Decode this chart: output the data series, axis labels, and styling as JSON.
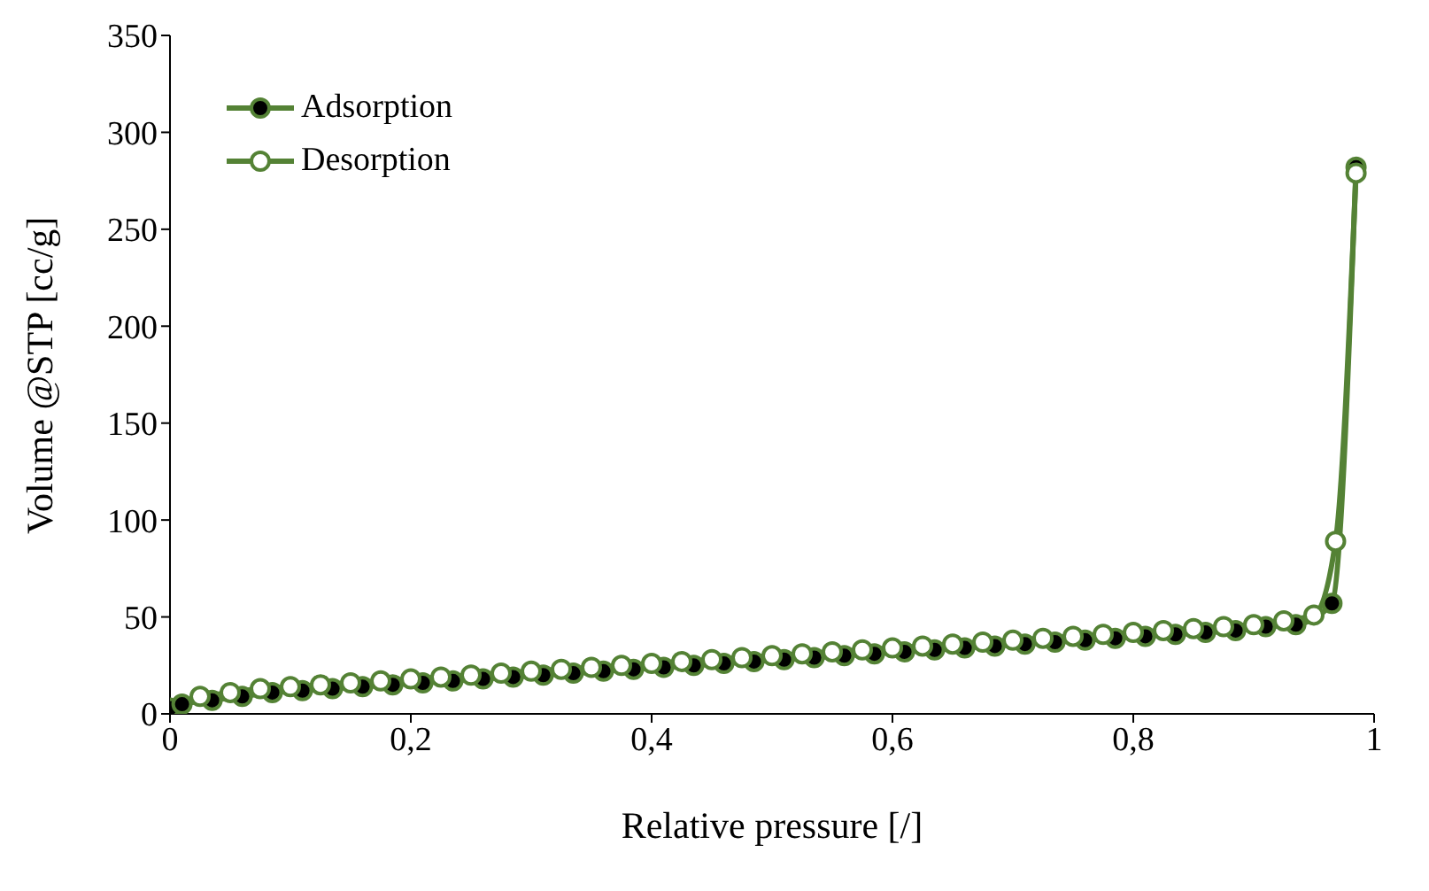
{
  "chart_data": {
    "type": "line",
    "xlabel": "Relative pressure [/]",
    "ylabel": "Volume @STP [cc/g]",
    "xlim": [
      0,
      1
    ],
    "ylim": [
      0,
      350
    ],
    "xticks": [
      0,
      {
        "value": 0.2,
        "label": "0,2"
      },
      {
        "value": 0.4,
        "label": "0,4"
      },
      {
        "value": 0.6,
        "label": "0,6"
      },
      {
        "value": 0.8,
        "label": "0,8"
      },
      1
    ],
    "yticks": [
      0,
      50,
      100,
      150,
      200,
      250,
      300,
      350
    ],
    "grid": false,
    "legend": "top left",
    "marker": "circle",
    "line_style": "solid",
    "series": [
      {
        "name": "Adsorption",
        "color": "#548235",
        "x": [
          0,
          0.01,
          0.035,
          0.06,
          0.085,
          0.11,
          0.135,
          0.16,
          0.185,
          0.21,
          0.235,
          0.26,
          0.285,
          0.31,
          0.335,
          0.36,
          0.385,
          0.41,
          0.435,
          0.46,
          0.485,
          0.51,
          0.535,
          0.56,
          0.585,
          0.61,
          0.635,
          0.66,
          0.685,
          0.71,
          0.735,
          0.76,
          0.785,
          0.81,
          0.835,
          0.86,
          0.885,
          0.91,
          0.935,
          0.965,
          0.985
        ],
        "values": [
          3,
          5,
          7,
          9,
          11,
          12,
          13,
          14,
          15,
          16,
          17,
          18,
          19,
          20,
          21,
          22,
          23,
          24,
          25,
          26,
          27,
          28,
          29,
          30,
          31,
          32,
          33,
          34,
          35,
          36,
          37,
          38,
          39,
          40,
          41,
          42,
          43,
          45,
          46,
          57,
          282
        ]
      },
      {
        "name": "Desorption",
        "color": "#548235",
        "x": [
          0.025,
          0.05,
          0.075,
          0.1,
          0.125,
          0.15,
          0.175,
          0.2,
          0.225,
          0.25,
          0.275,
          0.3,
          0.325,
          0.35,
          0.375,
          0.4,
          0.425,
          0.45,
          0.475,
          0.5,
          0.525,
          0.55,
          0.575,
          0.6,
          0.625,
          0.65,
          0.675,
          0.7,
          0.725,
          0.75,
          0.775,
          0.8,
          0.825,
          0.85,
          0.875,
          0.9,
          0.925,
          0.95,
          0.968,
          0.985
        ],
        "values": [
          9,
          11,
          13,
          14,
          15,
          16,
          17,
          18,
          19,
          20,
          21,
          22,
          23,
          24,
          25,
          26,
          27,
          28,
          29,
          30,
          31,
          32,
          33,
          34,
          35,
          36,
          37,
          38,
          39,
          40,
          41,
          42,
          43,
          44,
          45,
          46,
          48,
          51,
          89,
          279
        ]
      }
    ]
  }
}
